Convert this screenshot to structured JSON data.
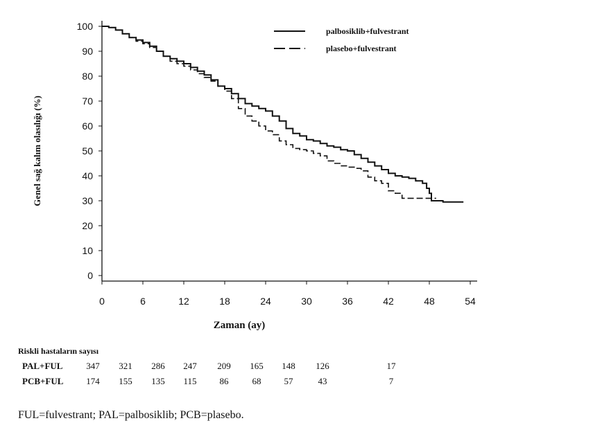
{
  "chart_data": {
    "type": "line",
    "ylabel": "Genel sağ kalım olasılığı (%)",
    "xlabel": "Zaman (ay)",
    "x_ticks": [
      "0",
      "6",
      "12",
      "18",
      "24",
      "30",
      "36",
      "42",
      "48",
      "54"
    ],
    "y_ticks": [
      "0",
      "10",
      "20",
      "30",
      "40",
      "50",
      "60",
      "70",
      "80",
      "90",
      "100"
    ],
    "xlim": [
      0,
      54
    ],
    "ylim": [
      0,
      100
    ],
    "grid": false,
    "legend_position": "top-right",
    "series": [
      {
        "name": "palbosiklib+fulvestrant",
        "style": "solid",
        "points": [
          [
            0,
            100
          ],
          [
            1,
            99.5
          ],
          [
            2,
            98.5
          ],
          [
            3,
            97
          ],
          [
            4,
            95.5
          ],
          [
            5,
            94.5
          ],
          [
            6,
            93.5
          ],
          [
            7,
            92
          ],
          [
            8,
            90
          ],
          [
            9,
            88
          ],
          [
            10,
            87
          ],
          [
            11,
            86
          ],
          [
            12,
            85
          ],
          [
            13,
            83.5
          ],
          [
            14,
            82
          ],
          [
            15,
            80.5
          ],
          [
            16,
            78.5
          ],
          [
            17,
            76
          ],
          [
            18,
            75
          ],
          [
            19,
            73
          ],
          [
            20,
            71
          ],
          [
            21,
            69
          ],
          [
            22,
            68
          ],
          [
            23,
            67
          ],
          [
            24,
            66
          ],
          [
            25,
            64
          ],
          [
            26,
            62
          ],
          [
            27,
            59
          ],
          [
            28,
            57
          ],
          [
            29,
            56
          ],
          [
            30,
            54.5
          ],
          [
            31,
            54
          ],
          [
            32,
            53
          ],
          [
            33,
            52
          ],
          [
            34,
            51.5
          ],
          [
            35,
            50.5
          ],
          [
            36,
            50
          ],
          [
            37,
            48.5
          ],
          [
            38,
            47
          ],
          [
            39,
            45.5
          ],
          [
            40,
            44
          ],
          [
            41,
            42.5
          ],
          [
            42,
            41
          ],
          [
            43,
            40
          ],
          [
            44,
            39.5
          ],
          [
            45,
            39
          ],
          [
            46,
            38
          ],
          [
            47,
            37
          ],
          [
            47.6,
            35
          ],
          [
            48,
            33
          ],
          [
            48.3,
            30
          ],
          [
            50,
            29.5
          ],
          [
            53,
            29.5
          ]
        ]
      },
      {
        "name": "plasebo+fulvestrant",
        "style": "dashed",
        "points": [
          [
            0,
            100
          ],
          [
            1,
            99.5
          ],
          [
            2,
            98.5
          ],
          [
            3,
            97
          ],
          [
            4,
            95.5
          ],
          [
            5,
            94
          ],
          [
            6,
            93
          ],
          [
            7,
            91.5
          ],
          [
            8,
            90
          ],
          [
            9,
            88
          ],
          [
            10,
            86
          ],
          [
            11,
            85
          ],
          [
            12,
            84
          ],
          [
            13,
            82.5
          ],
          [
            14,
            81
          ],
          [
            15,
            79.5
          ],
          [
            16,
            78
          ],
          [
            17,
            76
          ],
          [
            18,
            74
          ],
          [
            19,
            71
          ],
          [
            20,
            67
          ],
          [
            21,
            64
          ],
          [
            22,
            62
          ],
          [
            23,
            60
          ],
          [
            24,
            58
          ],
          [
            25,
            56.5
          ],
          [
            26,
            54
          ],
          [
            27,
            52.5
          ],
          [
            28,
            51
          ],
          [
            29,
            50.5
          ],
          [
            30,
            50
          ],
          [
            31,
            49
          ],
          [
            32,
            48
          ],
          [
            33,
            46
          ],
          [
            34,
            45
          ],
          [
            35,
            44
          ],
          [
            36,
            43.5
          ],
          [
            37,
            43
          ],
          [
            38,
            42
          ],
          [
            39,
            39.5
          ],
          [
            40,
            38
          ],
          [
            41,
            37
          ],
          [
            42,
            34
          ],
          [
            43,
            33
          ],
          [
            44,
            31
          ],
          [
            45,
            31
          ],
          [
            47,
            31
          ],
          [
            49,
            31
          ]
        ]
      }
    ]
  },
  "risk_table": {
    "title": "Riskli hastaların sayısı",
    "rows": [
      {
        "label": "PAL+FUL",
        "values": [
          "347",
          "321",
          "286",
          "247",
          "209",
          "165",
          "148",
          "126",
          "17"
        ]
      },
      {
        "label": "PCB+FUL",
        "values": [
          "174",
          "155",
          "135",
          "115",
          "86",
          "68",
          "57",
          "43",
          "7"
        ]
      }
    ]
  },
  "footnote": "FUL=fulvestrant; PAL=palbosiklib; PCB=plasebo."
}
